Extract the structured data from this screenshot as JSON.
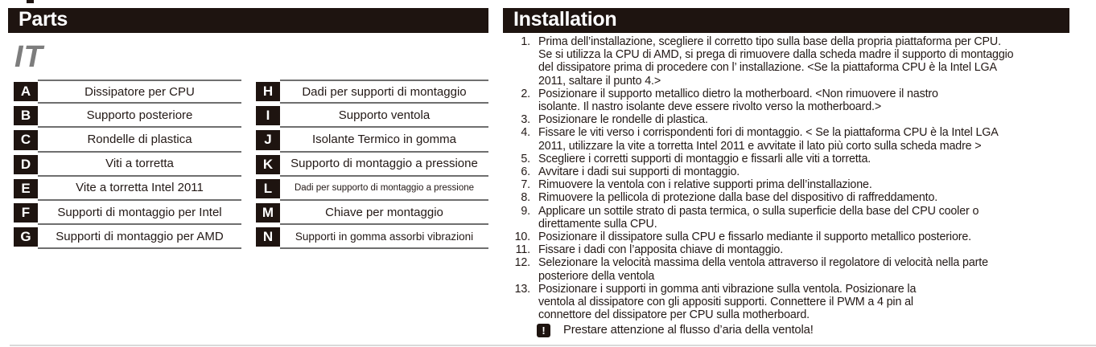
{
  "parts": {
    "header": "Parts",
    "language_label": "IT",
    "left_rows": [
      {
        "key": "A",
        "name": "Dissipatore per CPU"
      },
      {
        "key": "B",
        "name": "Supporto posteriore"
      },
      {
        "key": "C",
        "name": "Rondelle di plastica"
      },
      {
        "key": "D",
        "name": "Viti a torretta"
      },
      {
        "key": "E",
        "name": "Vite a torretta Intel 2011"
      },
      {
        "key": "F",
        "name": "Supporti di montaggio per Intel"
      },
      {
        "key": "G",
        "name": "Supporti di montaggio per AMD"
      }
    ],
    "right_rows": [
      {
        "key": "H",
        "name": "Dadi per supporti di montaggio"
      },
      {
        "key": "I",
        "name": "Supporto ventola"
      },
      {
        "key": "J",
        "name": "Isolante Termico in gomma"
      },
      {
        "key": "K",
        "name": "Supporto di montaggio a pressione"
      },
      {
        "key": "L",
        "name": "Dadi per supporto di montaggio a pressione"
      },
      {
        "key": "M",
        "name": "Chiave per montaggio"
      },
      {
        "key": "N",
        "name": "Supporti in gomma assorbi vibrazioni"
      }
    ]
  },
  "installation": {
    "header": "Installation",
    "steps": [
      {
        "num": "1.",
        "text": "Prima dell’installazione, scegliere il corretto tipo sulla base della propria piattaforma per CPU.\nSe si utilizza la CPU di AMD, si prega di rimuovere dalla scheda madre il supporto di montaggio\ndel dissipatore prima di procedere con l’ installazione. <Se la piattaforma CPU è la Intel LGA\n2011, saltare il punto 4.>"
      },
      {
        "num": "2.",
        "text": "Posizionare il supporto metallico dietro la motherboard. <Non rimuovere il nastro\nisolante. Il nastro isolante deve essere rivolto verso la motherboard.>"
      },
      {
        "num": "3.",
        "text": "Posizionare le rondelle di plastica."
      },
      {
        "num": "4.",
        "text": "Fissare le viti verso i corrispondenti fori di montaggio. <  Se la piattaforma CPU è la Intel LGA\n2011, utilizzare la vite a torretta Intel 2011 e avvitate il lato più corto sulla scheda madre >"
      },
      {
        "num": "5.",
        "text": "Scegliere i corretti supporti di montaggio e fissarli alle viti a torretta."
      },
      {
        "num": "6.",
        "text": "Avvitare i dadi sui supporti di montaggio."
      },
      {
        "num": "7.",
        "text": "Rimuovere la ventola con i relative supporti prima dell’installazione."
      },
      {
        "num": "8.",
        "text": "Rimuovere la pellicola di protezione dalla base del dispositivo di raffreddamento."
      },
      {
        "num": "9.",
        "text": "Applicare un sottile strato di pasta termica, o sulla superficie della base del CPU cooler o\ndirettamente sulla CPU."
      },
      {
        "num": "10.",
        "text": "Posizionare il dissipatore sulla CPU e fissarlo mediante il supporto metallico posteriore."
      },
      {
        "num": "11.",
        "text": "Fissare i dadi con l’apposita chiave di montaggio."
      },
      {
        "num": "12.",
        "text": "Selezionare la velocità massima della ventola attraverso il regolatore di velocità nella parte\nposteriore della ventola"
      },
      {
        "num": "13.",
        "text": "Posizionare i supporti in gomma anti vibrazione sulla ventola. Posizionare la\nventola al dissipatore con gli appositi supporti. Connettere il PWM a 4 pin al\nconnettore del dissipatore per CPU sulla motherboard."
      }
    ],
    "warning_icon_glyph": "!",
    "warning_text": "Prestare attenzione al flusso d’aria della ventola!"
  },
  "colors": {
    "ink": "#231916",
    "bar_bg": "#1e1410",
    "line_gray": "#6f6f6f",
    "accent_gray": "#7d7d7d",
    "hairline": "#d9d9d9"
  }
}
